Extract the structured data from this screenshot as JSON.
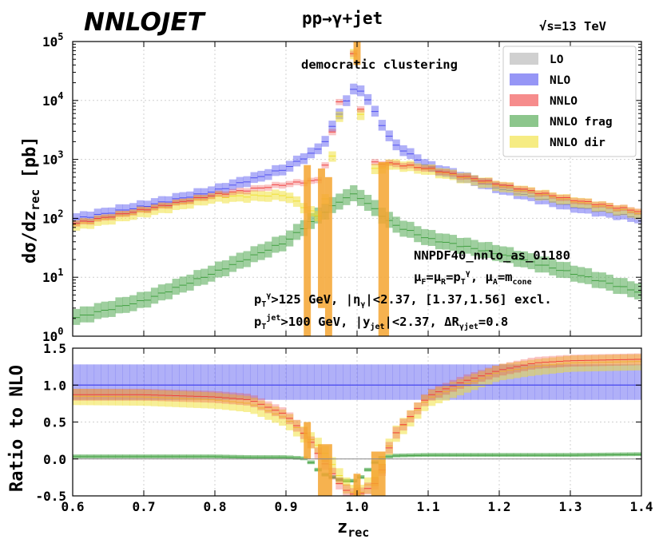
{
  "title": "NNLOJET",
  "process": "pp→γ+jet",
  "energy_label": "√s=13 TeV",
  "annotation_clustering": "democratic clustering",
  "pdf_label": "NNPDF40_nnlo_as_01180",
  "scale_label": "μF=μR=pTγ, μA=mcone",
  "cut_photon": "pTγ>125 GeV, |ηγ|<2.37, [1.37,1.56] excl.",
  "cut_jet": "pTjet>100 GeV, |yjet|<2.37, ΔRγjet=0.8",
  "colors": {
    "LO": "#b0b0b0",
    "NLO": "#5050f0",
    "NNLO": "#f04040",
    "NNLO frag": "#40a040",
    "NNLO dir": "#f0e030",
    "overlap": "#f5a530"
  },
  "chart_data": [
    {
      "type": "line",
      "panel": "main",
      "xlabel": "zrec",
      "ylabel": "dσ/dzrec [pb]",
      "yscale": "log",
      "xlim": [
        0.6,
        1.4
      ],
      "ylim": [
        1,
        100000
      ],
      "ytick_labels": [
        "10^0",
        "10^1",
        "10^2",
        "10^3",
        "10^4",
        "10^5"
      ],
      "legend": [
        "LO",
        "NLO",
        "NNLO",
        "NNLO frag",
        "NNLO dir"
      ],
      "legend_position": "top-right",
      "x": [
        0.6,
        0.7,
        0.8,
        0.9,
        0.95,
        0.99,
        1.0,
        1.01,
        1.05,
        1.1,
        1.2,
        1.3,
        1.4
      ],
      "series": [
        {
          "name": "NLO",
          "values": [
            95,
            160,
            290,
            700,
            1600,
            13000,
            17000,
            13000,
            1900,
            750,
            320,
            160,
            100
          ]
        },
        {
          "name": "NNLO",
          "values": [
            80,
            140,
            250,
            380,
            450,
            60000,
            60000,
            900,
            850,
            700,
            380,
            210,
            130
          ]
        },
        {
          "name": "NNLO frag",
          "values": [
            2,
            4,
            12,
            40,
            120,
            250,
            250,
            200,
            80,
            45,
            25,
            12,
            5.5
          ]
        },
        {
          "name": "NNLO dir",
          "values": [
            75,
            130,
            230,
            250,
            100,
            60000,
            60000,
            600,
            850,
            680,
            360,
            200,
            120
          ]
        }
      ]
    },
    {
      "type": "line",
      "panel": "ratio",
      "xlabel": "zrec",
      "ylabel": "Ratio to NLO",
      "xlim": [
        0.6,
        1.4
      ],
      "ylim": [
        -0.5,
        1.5
      ],
      "xtick_labels": [
        "0.6",
        "0.7",
        "0.8",
        "0.9",
        "1.0",
        "1.1",
        "1.2",
        "1.3",
        "1.4"
      ],
      "ytick_labels": [
        "-0.5",
        "0.0",
        "0.5",
        "1.0",
        "1.5"
      ],
      "x": [
        0.6,
        0.7,
        0.8,
        0.85,
        0.9,
        0.93,
        0.95,
        0.98,
        1.0,
        1.03,
        1.05,
        1.1,
        1.15,
        1.2,
        1.25,
        1.3,
        1.4
      ],
      "series": [
        {
          "name": "NLO",
          "values": [
            1.0,
            1.0,
            1.0,
            1.0,
            1.0,
            1.0,
            1.0,
            1.0,
            1.0,
            1.0,
            1.0,
            1.0,
            1.0,
            1.0,
            1.0,
            1.0,
            1.0
          ]
        },
        {
          "name": "NNLO",
          "values": [
            0.87,
            0.87,
            0.84,
            0.8,
            0.6,
            0.3,
            0.0,
            -0.4,
            -0.5,
            -0.3,
            0.3,
            0.85,
            1.05,
            1.2,
            1.3,
            1.33,
            1.35
          ]
        },
        {
          "name": "NNLO frag",
          "values": [
            0.03,
            0.03,
            0.03,
            0.02,
            0.02,
            0.0,
            -0.2,
            -0.3,
            -0.3,
            0.0,
            0.04,
            0.05,
            0.05,
            0.05,
            0.05,
            0.05,
            0.06
          ]
        },
        {
          "name": "NNLO dir",
          "values": [
            0.85,
            0.84,
            0.8,
            0.75,
            0.55,
            0.3,
            0.15,
            -0.3,
            -0.5,
            -0.2,
            0.3,
            0.82,
            1.0,
            1.18,
            1.25,
            1.3,
            1.32
          ]
        }
      ]
    }
  ]
}
